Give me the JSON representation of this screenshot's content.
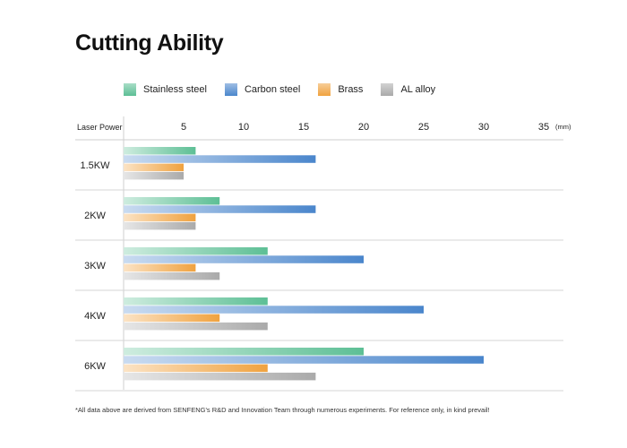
{
  "header": {
    "title": "Cutting Ability"
  },
  "chart_data": {
    "type": "bar",
    "orientation": "horizontal",
    "title": "Cutting Ability",
    "ylabel": "Laser Power",
    "xunit": "(mm)",
    "xlim": [
      0,
      35
    ],
    "xticks": [
      5,
      10,
      15,
      20,
      25,
      30,
      35
    ],
    "categories": [
      "1.5KW",
      "2KW",
      "3KW",
      "4KW",
      "6KW"
    ],
    "series": [
      {
        "name": "Stainless steel",
        "color": "#5dbf95",
        "values": [
          6,
          8,
          12,
          12,
          20
        ]
      },
      {
        "name": "Carbon steel",
        "color": "#4a86cc",
        "values": [
          16,
          16,
          20,
          25,
          30
        ]
      },
      {
        "name": "Brass",
        "color": "#f0a23f",
        "values": [
          5,
          6,
          6,
          8,
          12
        ]
      },
      {
        "name": "AL alloy",
        "color": "#aaaaaa",
        "values": [
          5,
          6,
          8,
          12,
          16
        ]
      }
    ],
    "grid": true,
    "legend_position": "top"
  },
  "footnote": "*All data above are derived from SENFENG's R&D and Innovation Team through numerous experiments. For reference only, in kind prevail!"
}
